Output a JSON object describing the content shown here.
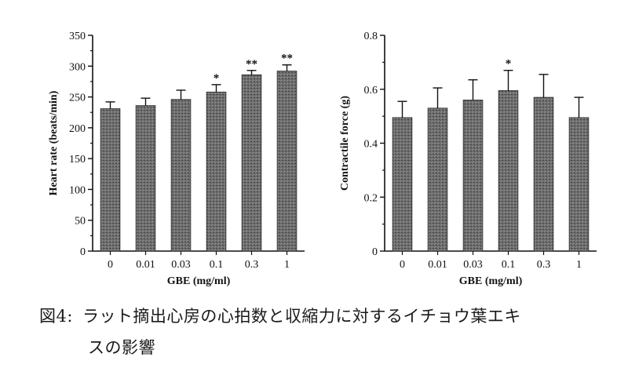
{
  "colors": {
    "bar_fill": "#6f6f6f",
    "axis": "#111111",
    "background": "#ffffff"
  },
  "chart_data": [
    {
      "type": "bar",
      "categories": [
        "0",
        "0.01",
        "0.03",
        "0.1",
        "0.3",
        "1"
      ],
      "values": [
        231,
        236,
        246,
        258,
        286,
        292
      ],
      "errors": [
        11,
        12,
        15,
        12,
        7,
        10
      ],
      "significance": [
        "",
        "",
        "",
        "*",
        "**",
        "**"
      ],
      "xlabel": "GBE (mg/ml)",
      "ylabel": "Heart rate (beats/min)",
      "ylim": [
        0,
        350
      ],
      "yticks": [
        0,
        50,
        100,
        150,
        200,
        250,
        300,
        350
      ],
      "ytick_labels": [
        "0",
        "50",
        "100",
        "150",
        "200",
        "250",
        "300",
        "350"
      ],
      "grid": false,
      "legend": "none"
    },
    {
      "type": "bar",
      "categories": [
        "0",
        "0.01",
        "0.03",
        "0.1",
        "0.3",
        "1"
      ],
      "values": [
        0.495,
        0.53,
        0.56,
        0.595,
        0.57,
        0.495
      ],
      "errors": [
        0.06,
        0.075,
        0.075,
        0.075,
        0.085,
        0.075
      ],
      "significance": [
        "",
        "",
        "",
        "*",
        "",
        ""
      ],
      "xlabel": "GBE (mg/ml)",
      "ylabel": "Contractile force (g)",
      "ylim": [
        0,
        0.8
      ],
      "yticks": [
        0,
        0.2,
        0.4,
        0.6,
        0.8
      ],
      "ytick_labels": [
        "0",
        "0.2",
        "0.4",
        "0.6",
        "0.8"
      ],
      "grid": false,
      "legend": "none"
    }
  ],
  "caption": {
    "label": "図4:",
    "line1": "ラット摘出心房の心拍数と収縮力に対するイチョウ葉エキ",
    "line2": "スの影響"
  }
}
